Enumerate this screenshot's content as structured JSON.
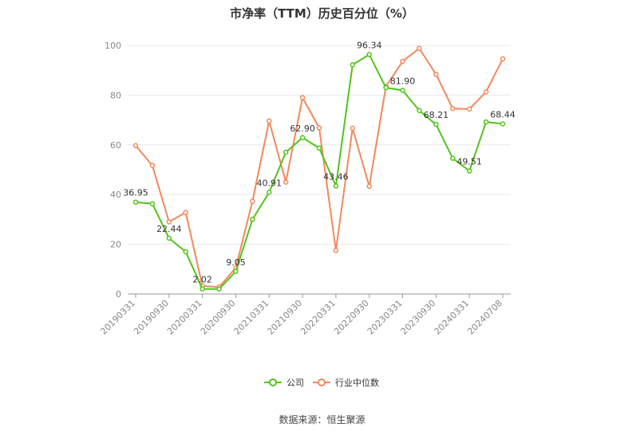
{
  "title": "市净率（TTM）历史百分位（%）",
  "source": "数据来源：恒生聚源",
  "colors": {
    "company": "#52c41a",
    "industry": "#f2895b",
    "grid": "#e8e8e8",
    "axis": "#999999"
  },
  "chart_data": {
    "type": "line",
    "title": "市净率（TTM）历史百分位（%）",
    "ylim": [
      0,
      100
    ],
    "yticks": [
      0,
      20,
      40,
      60,
      80,
      100
    ],
    "grid": true,
    "legend_position": "bottom-center",
    "x": [
      "20190331",
      "20190630",
      "20190930",
      "20191231",
      "20200331",
      "20200630",
      "20200930",
      "20201231",
      "20210331",
      "20210630",
      "20210930",
      "20211231",
      "20220331",
      "20220630",
      "20220930",
      "20221231",
      "20230331",
      "20230630",
      "20230930",
      "20231231",
      "20240331",
      "20240630",
      "20240708"
    ],
    "xtick_labels": [
      "20190331",
      "20190930",
      "20200331",
      "20200930",
      "20210331",
      "20210930",
      "20220331",
      "20220930",
      "20230331",
      "20230930",
      "20240331",
      "20240708"
    ],
    "series": [
      {
        "name": "公司",
        "values": [
          36.95,
          36.3,
          22.44,
          17.0,
          2.02,
          2.0,
          9.05,
          30.0,
          40.91,
          57.0,
          62.9,
          58.7,
          43.46,
          92.2,
          96.34,
          83.0,
          81.9,
          73.8,
          68.21,
          54.6,
          49.51,
          69.2,
          68.44
        ],
        "labels": {
          "0": "36.95",
          "2": "22.44",
          "4": "2.02",
          "6": "9.05",
          "8": "40.91",
          "10": "62.90",
          "12": "43.46",
          "14": "96.34",
          "16": "81.90",
          "18": "68.21",
          "20": "49.51",
          "22": "68.44"
        }
      },
      {
        "name": "行业中位数",
        "values": [
          59.7,
          51.7,
          29.0,
          32.8,
          3.2,
          2.8,
          10.5,
          37.3,
          69.6,
          45.0,
          79.0,
          66.8,
          17.5,
          66.7,
          43.3,
          83.5,
          93.6,
          98.8,
          88.4,
          74.6,
          74.4,
          81.3,
          94.6
        ]
      }
    ]
  }
}
